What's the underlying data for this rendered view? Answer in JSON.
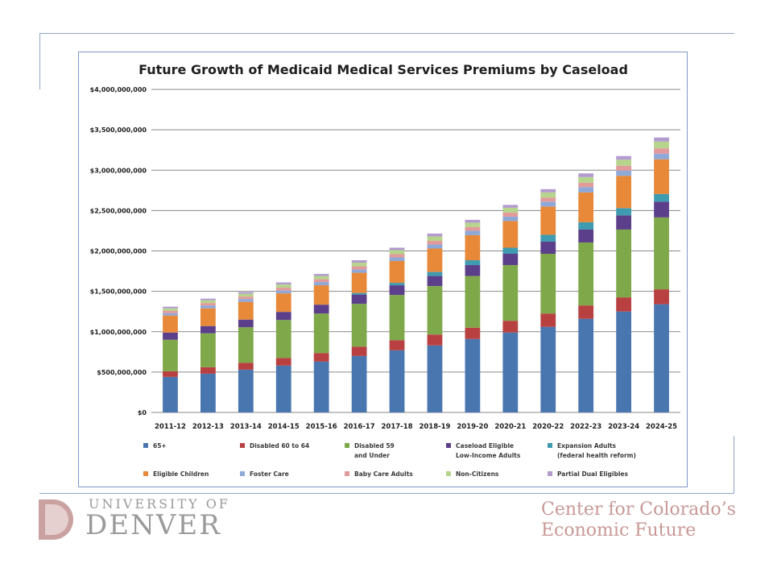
{
  "colors": {
    "slide_rule": "#8fa3c8",
    "frame_border": "#7f98c8",
    "du_red": "#c9a1a0",
    "du_gray": "#9a9a9a",
    "center_text": "#c89896"
  },
  "branding": {
    "university_line1": "UNIVERSITY OF",
    "university_line2": "DENVER",
    "center_line1": "Center for Colorado’s",
    "center_line2": "Economic Future"
  },
  "chart_data": {
    "type": "bar",
    "stacked": true,
    "title": "Future Growth of Medicaid Medical Services Premiums by Caseload",
    "xlabel": "",
    "ylabel": "",
    "ylim": [
      0,
      4000000000
    ],
    "ytick_values": [
      0,
      500000000,
      1000000000,
      1500000000,
      2000000000,
      2500000000,
      3000000000,
      3500000000,
      4000000000
    ],
    "ytick_labels": [
      "$0",
      "$500,000,000",
      "$1,000,000,000",
      "$1,500,000,000",
      "$2,000,000,000",
      "$2,500,000,000",
      "$3,000,000,000",
      "$3,500,000,000",
      "$4,000,000,000"
    ],
    "grid": true,
    "legend_position": "bottom",
    "categories": [
      "2011-12",
      "2012-13",
      "2013-14",
      "2014-15",
      "2015-16",
      "2016-17",
      "2017-18",
      "2018-19",
      "2019-20",
      "2020-21",
      "2020-22",
      "2022-23",
      "2023-24",
      "2024-25"
    ],
    "series": [
      {
        "name": "65+",
        "legend_lines": [
          "65+"
        ],
        "color": "#4a76b0",
        "values": [
          440000000,
          480000000,
          530000000,
          580000000,
          630000000,
          700000000,
          770000000,
          830000000,
          910000000,
          990000000,
          1060000000,
          1160000000,
          1250000000,
          1340000000
        ]
      },
      {
        "name": "Disabled 60 to 64",
        "legend_lines": [
          "Disabled 60 to 64"
        ],
        "color": "#b84040",
        "values": [
          70000000,
          80000000,
          85000000,
          95000000,
          105000000,
          115000000,
          125000000,
          135000000,
          140000000,
          145000000,
          165000000,
          165000000,
          175000000,
          185000000
        ]
      },
      {
        "name": "Disabled 59 and Under",
        "legend_lines": [
          "Disabled 59",
          "and Under"
        ],
        "color": "#7fa84a",
        "values": [
          390000000,
          420000000,
          440000000,
          470000000,
          490000000,
          530000000,
          560000000,
          600000000,
          640000000,
          690000000,
          740000000,
          780000000,
          840000000,
          890000000
        ]
      },
      {
        "name": "Caseload Eligible Low-Income Adults",
        "legend_lines": [
          "Caseload Eligible",
          "Low-Income Adults"
        ],
        "color": "#5c3f8a",
        "values": [
          90000000,
          90000000,
          95000000,
          100000000,
          110000000,
          115000000,
          120000000,
          125000000,
          135000000,
          140000000,
          150000000,
          160000000,
          175000000,
          195000000
        ]
      },
      {
        "name": "Expansion Adults (federal health reform)",
        "legend_lines": [
          "Expansion Adults",
          "(federal health reform)"
        ],
        "color": "#3f9bb0",
        "values": [
          0,
          0,
          0,
          0,
          0,
          20000000,
          30000000,
          50000000,
          60000000,
          75000000,
          85000000,
          90000000,
          90000000,
          95000000
        ]
      },
      {
        "name": "Eligible Children",
        "legend_lines": [
          "Eligible Children"
        ],
        "color": "#e8893a",
        "values": [
          210000000,
          220000000,
          220000000,
          230000000,
          240000000,
          250000000,
          270000000,
          290000000,
          310000000,
          330000000,
          350000000,
          370000000,
          400000000,
          430000000
        ]
      },
      {
        "name": "Foster Care",
        "legend_lines": [
          "Foster Care"
        ],
        "color": "#8ea8d8",
        "values": [
          30000000,
          35000000,
          35000000,
          35000000,
          40000000,
          40000000,
          45000000,
          50000000,
          55000000,
          55000000,
          60000000,
          65000000,
          65000000,
          70000000
        ]
      },
      {
        "name": "Baby Care Adults",
        "legend_lines": [
          "Baby Care Adults"
        ],
        "color": "#e39a9a",
        "values": [
          30000000,
          30000000,
          30000000,
          35000000,
          35000000,
          40000000,
          40000000,
          45000000,
          45000000,
          50000000,
          50000000,
          55000000,
          60000000,
          65000000
        ]
      },
      {
        "name": "Non-Citizens",
        "legend_lines": [
          "Non-Citizens"
        ],
        "color": "#b6d48c",
        "values": [
          30000000,
          35000000,
          35000000,
          40000000,
          40000000,
          45000000,
          50000000,
          55000000,
          55000000,
          60000000,
          65000000,
          70000000,
          75000000,
          85000000
        ]
      },
      {
        "name": "Partial Dual Eligibles",
        "legend_lines": [
          "Partial Dual Eligibles"
        ],
        "color": "#b39bd0",
        "values": [
          20000000,
          20000000,
          20000000,
          25000000,
          25000000,
          30000000,
          30000000,
          35000000,
          35000000,
          35000000,
          40000000,
          45000000,
          45000000,
          50000000
        ]
      }
    ]
  }
}
